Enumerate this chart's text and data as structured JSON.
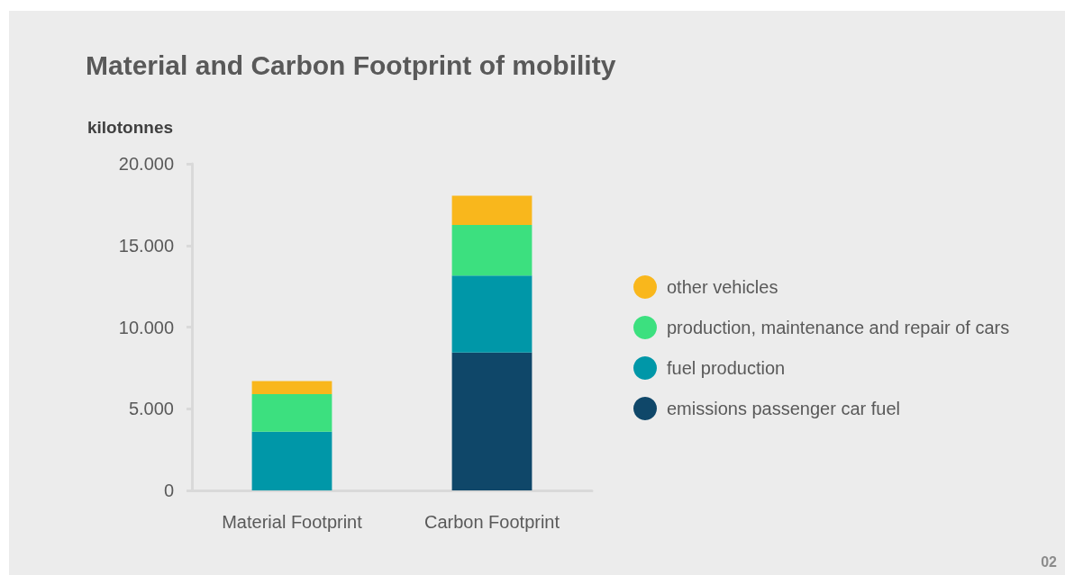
{
  "chart_data": {
    "type": "bar",
    "title": "Material and Carbon Footprint of mobility",
    "ylabel": "kilotonnes",
    "annotations": [
      "02"
    ],
    "categories": [
      "Material Footprint",
      "Carbon Footprint"
    ],
    "series": [
      {
        "name": "emissions passenger car fuel",
        "color": "#0f4769",
        "values": [
          null,
          8450
        ]
      },
      {
        "name": "fuel production",
        "color": "#0097a8",
        "values": [
          3600,
          4700
        ]
      },
      {
        "name": "production, maintenance and repair of cars",
        "color": "#3ce07f",
        "values": [
          2300,
          3100
        ]
      },
      {
        "name": "other vehicles",
        "color": "#f9b71c",
        "values": [
          800,
          1800
        ]
      }
    ],
    "stacked": true,
    "legend": "right",
    "ylim": [
      0,
      20000
    ],
    "yticks": [
      0,
      {
        "value": 5000,
        "label": "5.000"
      },
      {
        "value": 10000,
        "label": "10.000"
      },
      {
        "value": 15000,
        "label": "15.000"
      },
      {
        "value": 20000,
        "label": "20.000"
      }
    ]
  }
}
